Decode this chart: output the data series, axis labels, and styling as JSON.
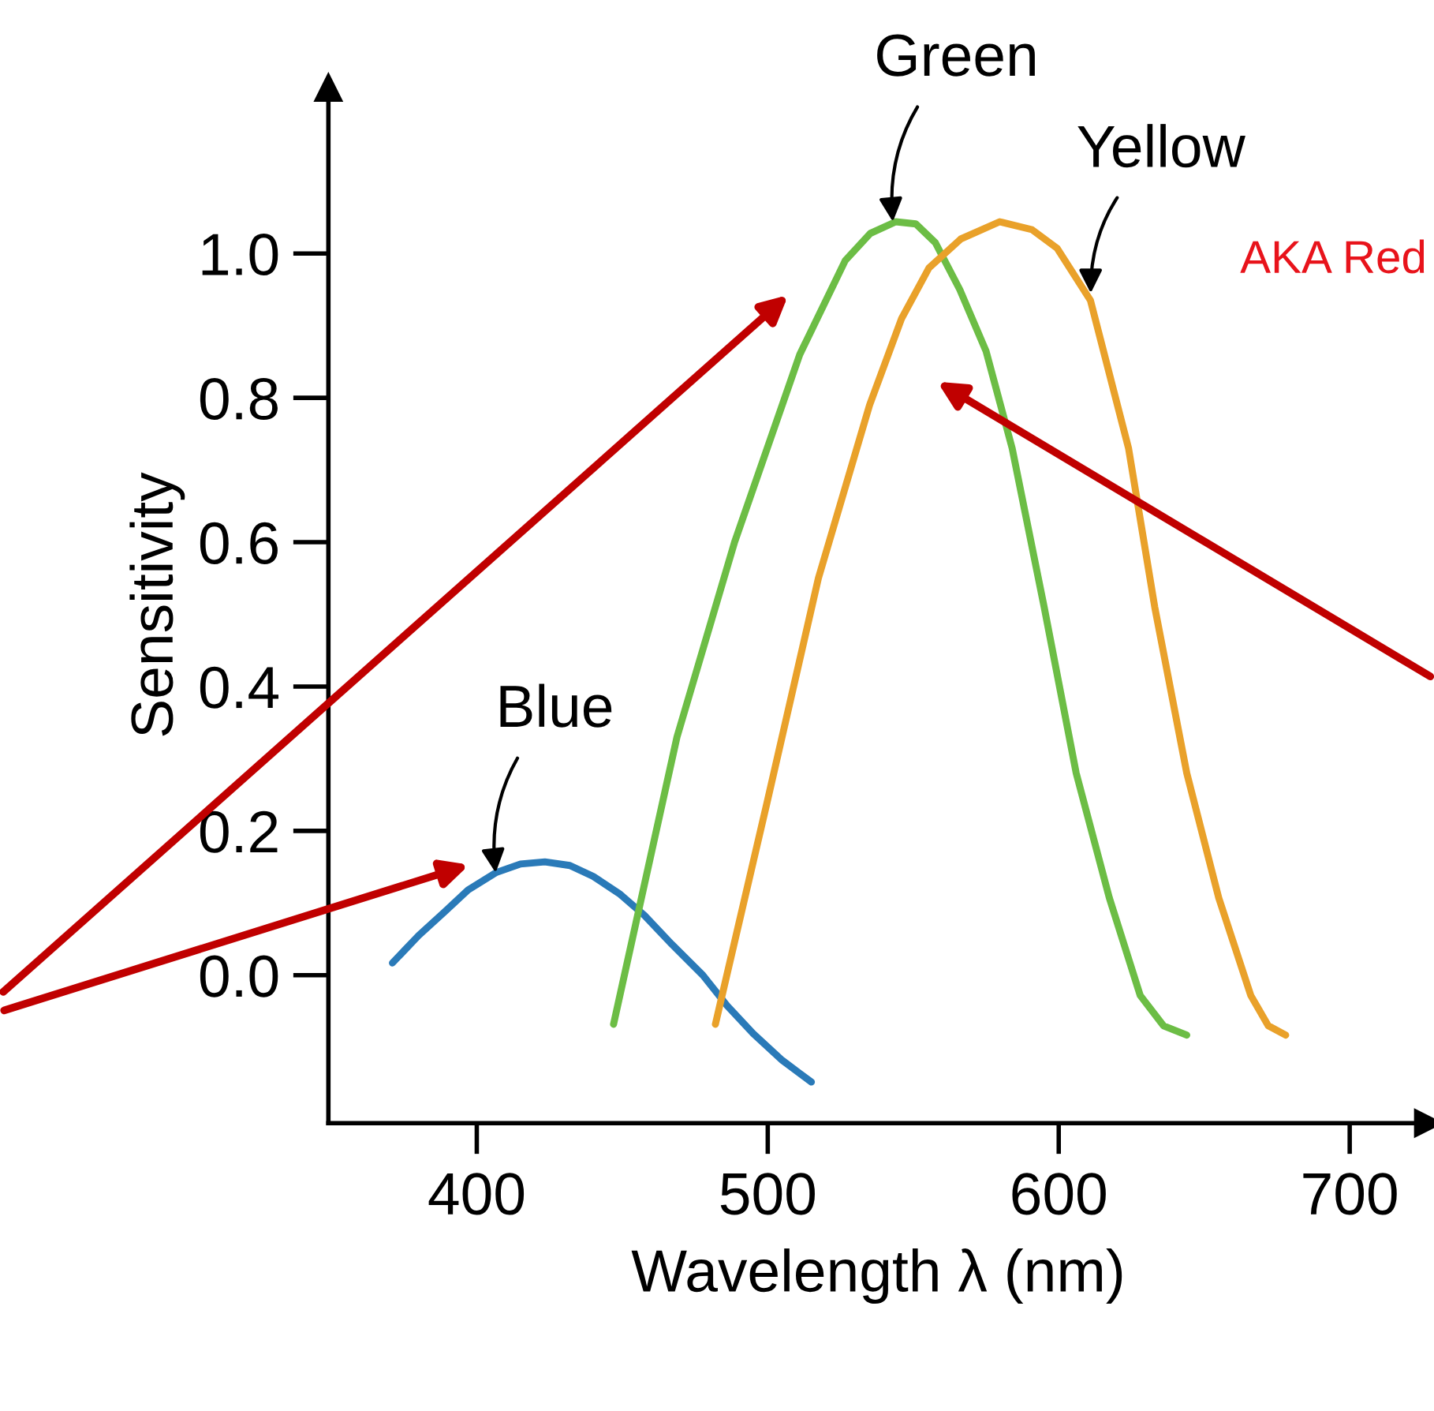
{
  "chart_data": {
    "type": "line",
    "xlabel": "Wavelength λ (nm)",
    "ylabel": "Sensitivity",
    "xlim": [
      349,
      727
    ],
    "ylim": [
      -0.205,
      1.23
    ],
    "xticks": [
      400,
      500,
      600,
      700
    ],
    "yticks": [
      {
        "value": 0,
        "label": "0.0"
      },
      {
        "value": 0.2,
        "label": "0.2"
      },
      {
        "value": 0.4,
        "label": "0.4"
      },
      {
        "value": 0.6,
        "label": "0.6"
      },
      {
        "value": 0.8,
        "label": "0.8"
      },
      {
        "value": 1,
        "label": "1.0"
      }
    ],
    "grid": false,
    "legend": false,
    "marker": "none",
    "line_style": "solid",
    "series": [
      {
        "color": "#2a7ab8",
        "x": [
          371,
          380,
          389,
          397,
          406.5,
          415,
          423.4,
          432,
          440,
          449,
          457.6,
          467,
          477.7,
          486,
          495,
          505,
          515
        ],
        "values": [
          0.017,
          0.055,
          0.088,
          0.118,
          0.142,
          0.154,
          0.157,
          0.152,
          0.137,
          0.113,
          0.083,
          0.043,
          0.0,
          -0.042,
          -0.081,
          -0.118,
          -0.148
        ]
      },
      {
        "color": "#6cbd45",
        "x": [
          447,
          468.8,
          488.6,
          511,
          526.6,
          535.3,
          544,
          550.9,
          557.6,
          566,
          575,
          584,
          595,
          606,
          617.4,
          628,
          636,
          644
        ],
        "values": [
          -0.068,
          0.33,
          0.6,
          0.86,
          0.99,
          1.028,
          1.044,
          1.041,
          1.015,
          0.95,
          0.865,
          0.73,
          0.51,
          0.28,
          0.107,
          -0.028,
          -0.07,
          -0.083
        ]
      },
      {
        "color": "#e9a12a",
        "x": [
          482,
          499.8,
          517.4,
          535,
          546,
          555.4,
          566.3,
          579.7,
          590.8,
          599.5,
          610.9,
          624,
          633,
          644,
          655,
          666,
          672,
          678
        ],
        "values": [
          -0.068,
          0.24,
          0.55,
          0.79,
          0.91,
          0.98,
          1.02,
          1.044,
          1.033,
          1.007,
          0.935,
          0.73,
          0.51,
          0.28,
          0.107,
          -0.028,
          -0.07,
          -0.083
        ]
      }
    ],
    "annotations": [
      {
        "text": "Blue",
        "x": 406.5,
        "y": 0.142
      },
      {
        "text": "Green",
        "x": 543,
        "y": 1.044
      },
      {
        "text": "Yellow",
        "x": 611,
        "y": 0.945
      },
      "AKA Red"
    ]
  }
}
